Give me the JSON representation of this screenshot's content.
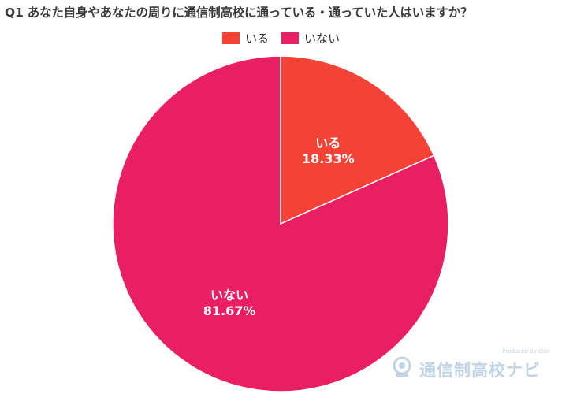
{
  "title": "Q1 あなた自身やあなたの周りに通信制高校に通っている・通っていた人はいますか？",
  "chart_data": {
    "type": "pie",
    "slices": [
      {
        "label": "いる",
        "value": 18.33,
        "display": "18.33%",
        "color": "#F44336"
      },
      {
        "label": "いない",
        "value": 81.67,
        "display": "81.67%",
        "color": "#E91E63"
      }
    ],
    "legend_position": "top"
  },
  "watermark": {
    "produced_by": "Produced by Clor",
    "brand": "通信制高校ナビ"
  }
}
